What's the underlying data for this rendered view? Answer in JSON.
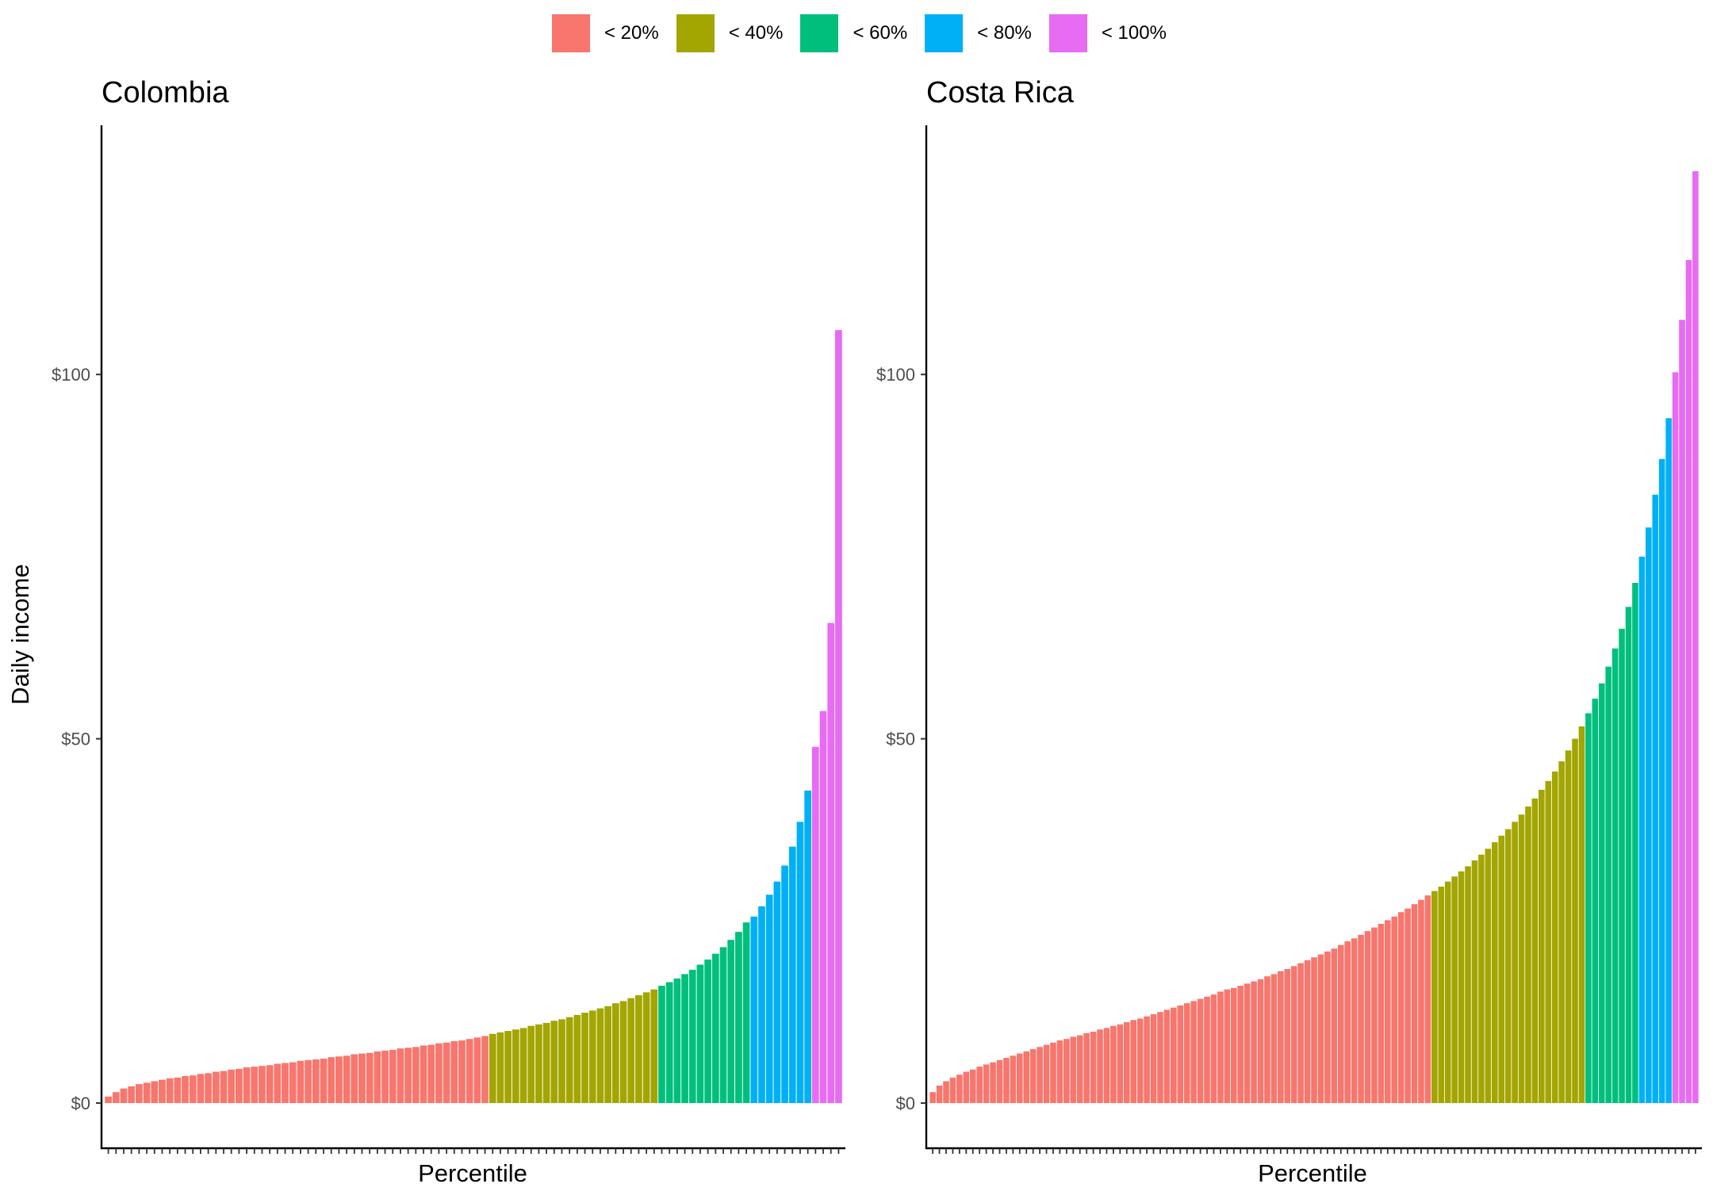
{
  "legend": [
    {
      "label": "< 20%",
      "color": "#F8766D"
    },
    {
      "label": "< 40%",
      "color": "#A3A500"
    },
    {
      "label": "< 60%",
      "color": "#00BF7D"
    },
    {
      "label": "< 80%",
      "color": "#00B0F6"
    },
    {
      "label": "< 100%",
      "color": "#E76BF3"
    }
  ],
  "ylabel": "Daily income",
  "chart_data": [
    {
      "type": "bar",
      "title": "Colombia",
      "xlabel": "Percentile",
      "ylabel": "Daily income",
      "ylim": [
        -6.2,
        134.2
      ],
      "yticks": [
        0,
        50,
        100
      ],
      "ytick_labels": [
        "$0",
        "$50",
        "$100"
      ],
      "group_breaks": [
        20,
        40,
        60,
        80
      ],
      "groups": [
        "< 20%",
        "< 40%",
        "< 60%",
        "< 80%",
        "< 100%"
      ],
      "series": [
        {
          "name": "< 20%",
          "values": [
            0.9,
            1.5,
            2.0,
            2.3,
            2.6,
            2.8,
            3.0,
            3.2,
            3.4,
            3.5,
            3.7,
            3.8,
            4.0,
            4.1,
            4.3,
            4.4,
            4.6,
            4.7,
            4.9,
            5.0,
            5.1,
            5.2,
            5.4,
            5.5,
            5.6,
            5.8,
            5.9,
            6.0,
            6.1,
            6.3,
            6.4,
            6.5,
            6.7,
            6.8,
            6.9,
            7.1,
            7.2,
            7.3,
            7.5,
            7.6,
            7.7,
            7.9,
            8.0,
            8.2,
            8.3,
            8.5,
            8.6,
            8.8,
            9.0,
            9.2
          ]
        },
        {
          "name": "< 40%",
          "values": [
            9.5,
            9.7,
            9.9,
            10.1,
            10.3,
            10.6,
            10.8,
            11.0,
            11.3,
            11.5,
            11.8,
            12.1,
            12.4,
            12.7,
            13.0,
            13.3,
            13.7,
            14.0,
            14.4,
            14.8,
            15.2,
            15.6
          ]
        },
        {
          "name": "< 60%",
          "values": [
            16.1,
            16.6,
            17.1,
            17.7,
            18.3,
            19.0,
            19.7,
            20.5,
            21.4,
            22.4,
            23.5,
            24.8
          ]
        },
        {
          "name": "< 80%",
          "values": [
            25.6,
            27.0,
            28.6,
            30.4,
            32.6,
            35.2,
            38.6,
            42.9
          ]
        },
        {
          "name": "< 100%",
          "values": [
            48.9,
            53.8,
            65.9,
            106.1
          ]
        }
      ]
    },
    {
      "type": "bar",
      "title": "Costa Rica",
      "xlabel": "Percentile",
      "ylabel": "Daily income",
      "ylim": [
        -6.2,
        134.2
      ],
      "yticks": [
        0,
        50,
        100
      ],
      "ytick_labels": [
        "$0",
        "$50",
        "$100"
      ],
      "group_breaks": [
        20,
        40,
        60,
        80
      ],
      "groups": [
        "< 20%",
        "< 40%",
        "< 60%",
        "< 80%",
        "< 100%"
      ],
      "series": [
        {
          "name": "< 20%",
          "values": [
            1.5,
            2.4,
            3.0,
            3.5,
            3.9,
            4.3,
            4.6,
            5.0,
            5.3,
            5.6,
            5.9,
            6.2,
            6.5,
            6.8,
            7.1,
            7.4,
            7.7,
            8.0,
            8.3,
            8.6,
            8.8,
            9.1,
            9.3,
            9.6,
            9.8,
            10.1,
            10.3,
            10.6,
            10.8,
            11.1,
            11.4,
            11.6,
            11.9,
            12.2,
            12.5,
            12.8,
            13.1,
            13.4,
            13.7,
            14.0,
            14.3,
            14.6,
            14.9,
            15.3,
            15.6,
            15.8,
            16.1,
            16.4,
            16.7,
            17.0,
            17.4,
            17.7,
            18.1,
            18.4,
            18.8,
            19.2,
            19.6,
            20.0,
            20.4,
            20.8,
            21.2,
            21.7,
            22.2,
            22.6,
            23.1,
            23.6,
            24.1,
            24.6,
            25.1,
            25.6,
            26.2,
            26.7,
            27.3,
            27.9,
            28.5
          ]
        },
        {
          "name": "< 40%",
          "values": [
            29.1,
            29.7,
            30.4,
            31.1,
            31.8,
            32.5,
            33.3,
            34.1,
            34.9,
            35.8,
            36.7,
            37.6,
            38.6,
            39.6,
            40.7,
            41.8,
            43.0,
            44.2,
            45.5,
            46.9,
            48.4,
            50.0,
            51.7
          ]
        },
        {
          "name": "< 60%",
          "values": [
            53.5,
            55.5,
            57.6,
            59.9,
            62.4,
            65.1,
            68.1,
            71.4
          ]
        },
        {
          "name": "< 80%",
          "values": [
            75.0,
            79.0,
            83.5,
            88.4,
            94.0
          ]
        },
        {
          "name": "< 100%",
          "values": [
            100.3,
            107.5,
            115.7,
            127.9
          ]
        }
      ]
    }
  ]
}
